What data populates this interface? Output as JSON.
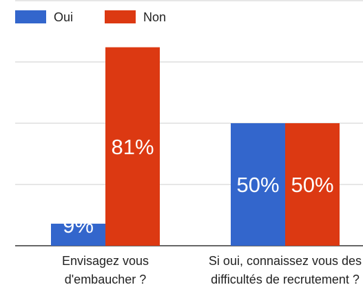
{
  "chart_data": {
    "type": "bar",
    "categories": [
      "Envisagez vous d'embaucher ?",
      "Si oui, connaissez vous des difficultés de recrutement ?"
    ],
    "series": [
      {
        "name": "Oui",
        "color": "#3366cc",
        "values": [
          9,
          50
        ],
        "value_labels": [
          "9%",
          "50%"
        ]
      },
      {
        "name": "Non",
        "color": "#dc3912",
        "values": [
          81,
          50
        ],
        "value_labels": [
          "81%",
          "50%"
        ]
      }
    ],
    "ylim": [
      0,
      100
    ],
    "yticks": [
      0,
      25,
      50,
      75,
      100
    ],
    "grid": true,
    "legend": "top"
  }
}
